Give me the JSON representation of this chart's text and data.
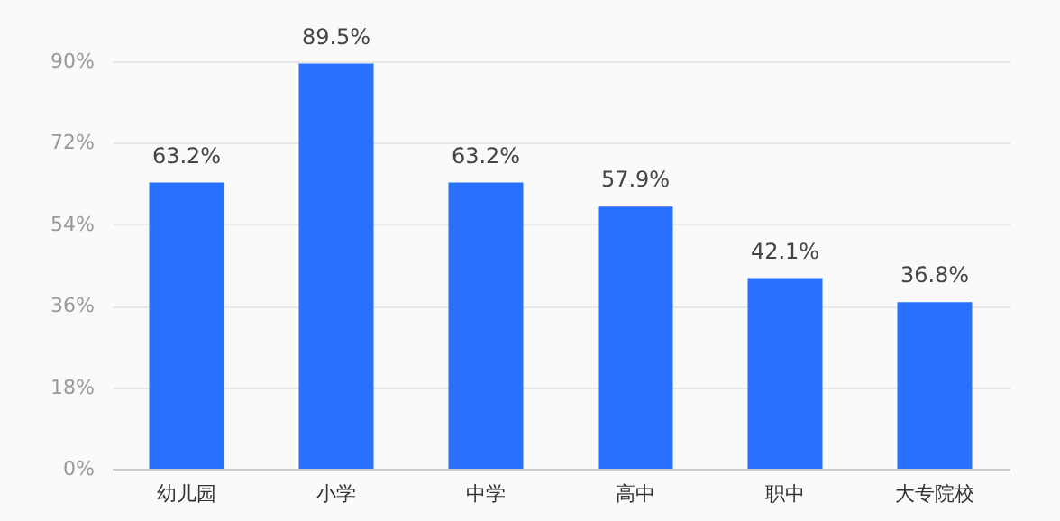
{
  "chart_data": {
    "type": "bar",
    "categories": [
      "幼儿园",
      "小学",
      "中学",
      "高中",
      "职中",
      "大专院校"
    ],
    "values": [
      63.2,
      89.5,
      63.2,
      57.9,
      42.1,
      36.8
    ],
    "value_labels": [
      "63.2%",
      "89.5%",
      "63.2%",
      "57.9%",
      "42.1%",
      "36.8%"
    ],
    "color": "#2970ff",
    "ylim": [
      0,
      90
    ],
    "yticks": [
      {
        "value": 0,
        "label": "0%"
      },
      {
        "value": 18,
        "label": "18%"
      },
      {
        "value": 36,
        "label": "36%"
      },
      {
        "value": 54,
        "label": "54%"
      },
      {
        "value": 72,
        "label": "72%"
      },
      {
        "value": 90,
        "label": "90%"
      }
    ],
    "grid": "y"
  }
}
